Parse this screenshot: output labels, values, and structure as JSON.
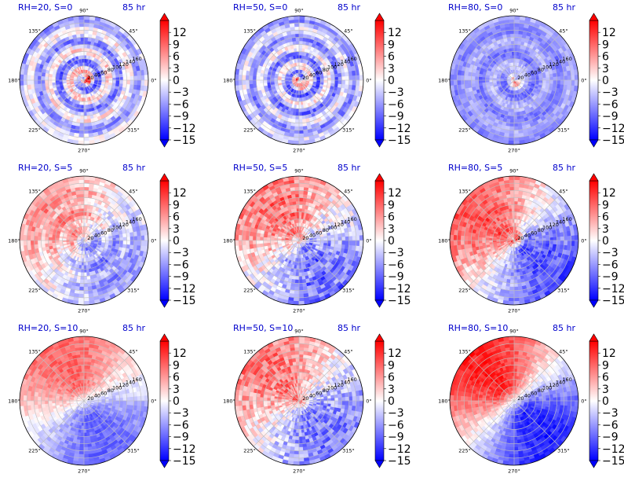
{
  "figure": {
    "background": "#ffffff",
    "title_color": "#0000cc"
  },
  "chart_data": {
    "type": "heatmap",
    "subtype": "polar-azimuthal-field",
    "colormap": "bwr",
    "color_min": "#0000ff",
    "color_mid": "#ffffff",
    "color_max": "#ff0000",
    "color_range": [
      -15,
      15
    ],
    "colorbar_ticks": [
      "12",
      "9",
      "6",
      "3",
      "0",
      "−3",
      "−6",
      "−9",
      "−12",
      "−15"
    ],
    "colorbar_extend": "both",
    "angular_ticks": [
      "0°",
      "45°",
      "90°",
      "135°",
      "180°",
      "225°",
      "270°",
      "315°"
    ],
    "angular_tick_degrees": [
      0,
      45,
      90,
      135,
      180,
      225,
      270,
      315
    ],
    "radial_ticks": [
      20,
      40,
      60,
      80,
      100,
      120,
      140,
      160
    ],
    "radial_tick_labels": [
      "20",
      "40",
      "60",
      "80",
      "100",
      "120",
      "140",
      "160"
    ],
    "radial_max": 180,
    "panels": [
      {
        "title": "RH=20, S=0",
        "time": "85 hr",
        "pattern": {
          "bg": -3,
          "wave_amp": 0,
          "wave_phase": 0,
          "spiral_amp": 10,
          "spiral_k": 0.035,
          "spiral_phase": 1.2,
          "spiral_sign": -1,
          "center": 14,
          "noise": 3
        }
      },
      {
        "title": "RH=50, S=0",
        "time": "85 hr",
        "pattern": {
          "bg": -4,
          "wave_amp": 0,
          "wave_phase": 0,
          "spiral_amp": 9,
          "spiral_k": 0.04,
          "spiral_phase": 3.8,
          "spiral_sign": -1,
          "center": 14,
          "noise": 3
        }
      },
      {
        "title": "RH=80, S=0",
        "time": "85 hr",
        "pattern": {
          "bg": -6,
          "wave_amp": 0,
          "wave_phase": 0,
          "spiral_amp": 4,
          "spiral_k": 0.03,
          "spiral_phase": 2.5,
          "spiral_sign": -1,
          "center": 15,
          "noise": 2
        }
      },
      {
        "title": "RH=20, S=5",
        "time": "85 hr",
        "pattern": {
          "bg": 0,
          "wave_amp": 6,
          "wave_phase": 2.4,
          "spiral_amp": 4,
          "spiral_k": 0.035,
          "spiral_phase": 0.5,
          "spiral_sign": -1,
          "center": -4,
          "noise": 3
        }
      },
      {
        "title": "RH=50, S=5",
        "time": "85 hr",
        "pattern": {
          "bg": 0,
          "wave_amp": 8,
          "wave_phase": 2.2,
          "spiral_amp": 3,
          "spiral_k": 0.04,
          "spiral_phase": 1.0,
          "spiral_sign": -1,
          "center": 6,
          "noise": 4
        }
      },
      {
        "title": "RH=80, S=5",
        "time": "85 hr",
        "pattern": {
          "bg": 0,
          "wave_amp": 10,
          "wave_phase": 2.5,
          "spiral_amp": 2,
          "spiral_k": 0.03,
          "spiral_phase": 0.8,
          "spiral_sign": -1,
          "center": 15,
          "noise": 3
        }
      },
      {
        "title": "RH=20, S=10",
        "time": "85 hr",
        "pattern": {
          "bg": 0,
          "wave_amp": 9,
          "wave_phase": 2.0,
          "spiral_amp": 0,
          "spiral_k": 0.03,
          "spiral_phase": 0,
          "spiral_sign": -1,
          "center": 0,
          "noise": 2
        }
      },
      {
        "title": "RH=50, S=10",
        "time": "85 hr",
        "pattern": {
          "bg": 0,
          "wave_amp": 8,
          "wave_phase": 2.3,
          "spiral_amp": 0,
          "spiral_k": 0.03,
          "spiral_phase": 0,
          "spiral_sign": -1,
          "center": 12,
          "noise": 4
        }
      },
      {
        "title": "RH=80, S=10",
        "time": "85 hr",
        "pattern": {
          "bg": 0,
          "wave_amp": 13,
          "wave_phase": 2.3,
          "spiral_amp": 0,
          "spiral_k": 0.03,
          "spiral_phase": 0,
          "spiral_sign": -1,
          "center": 0,
          "noise": 2
        }
      }
    ]
  }
}
